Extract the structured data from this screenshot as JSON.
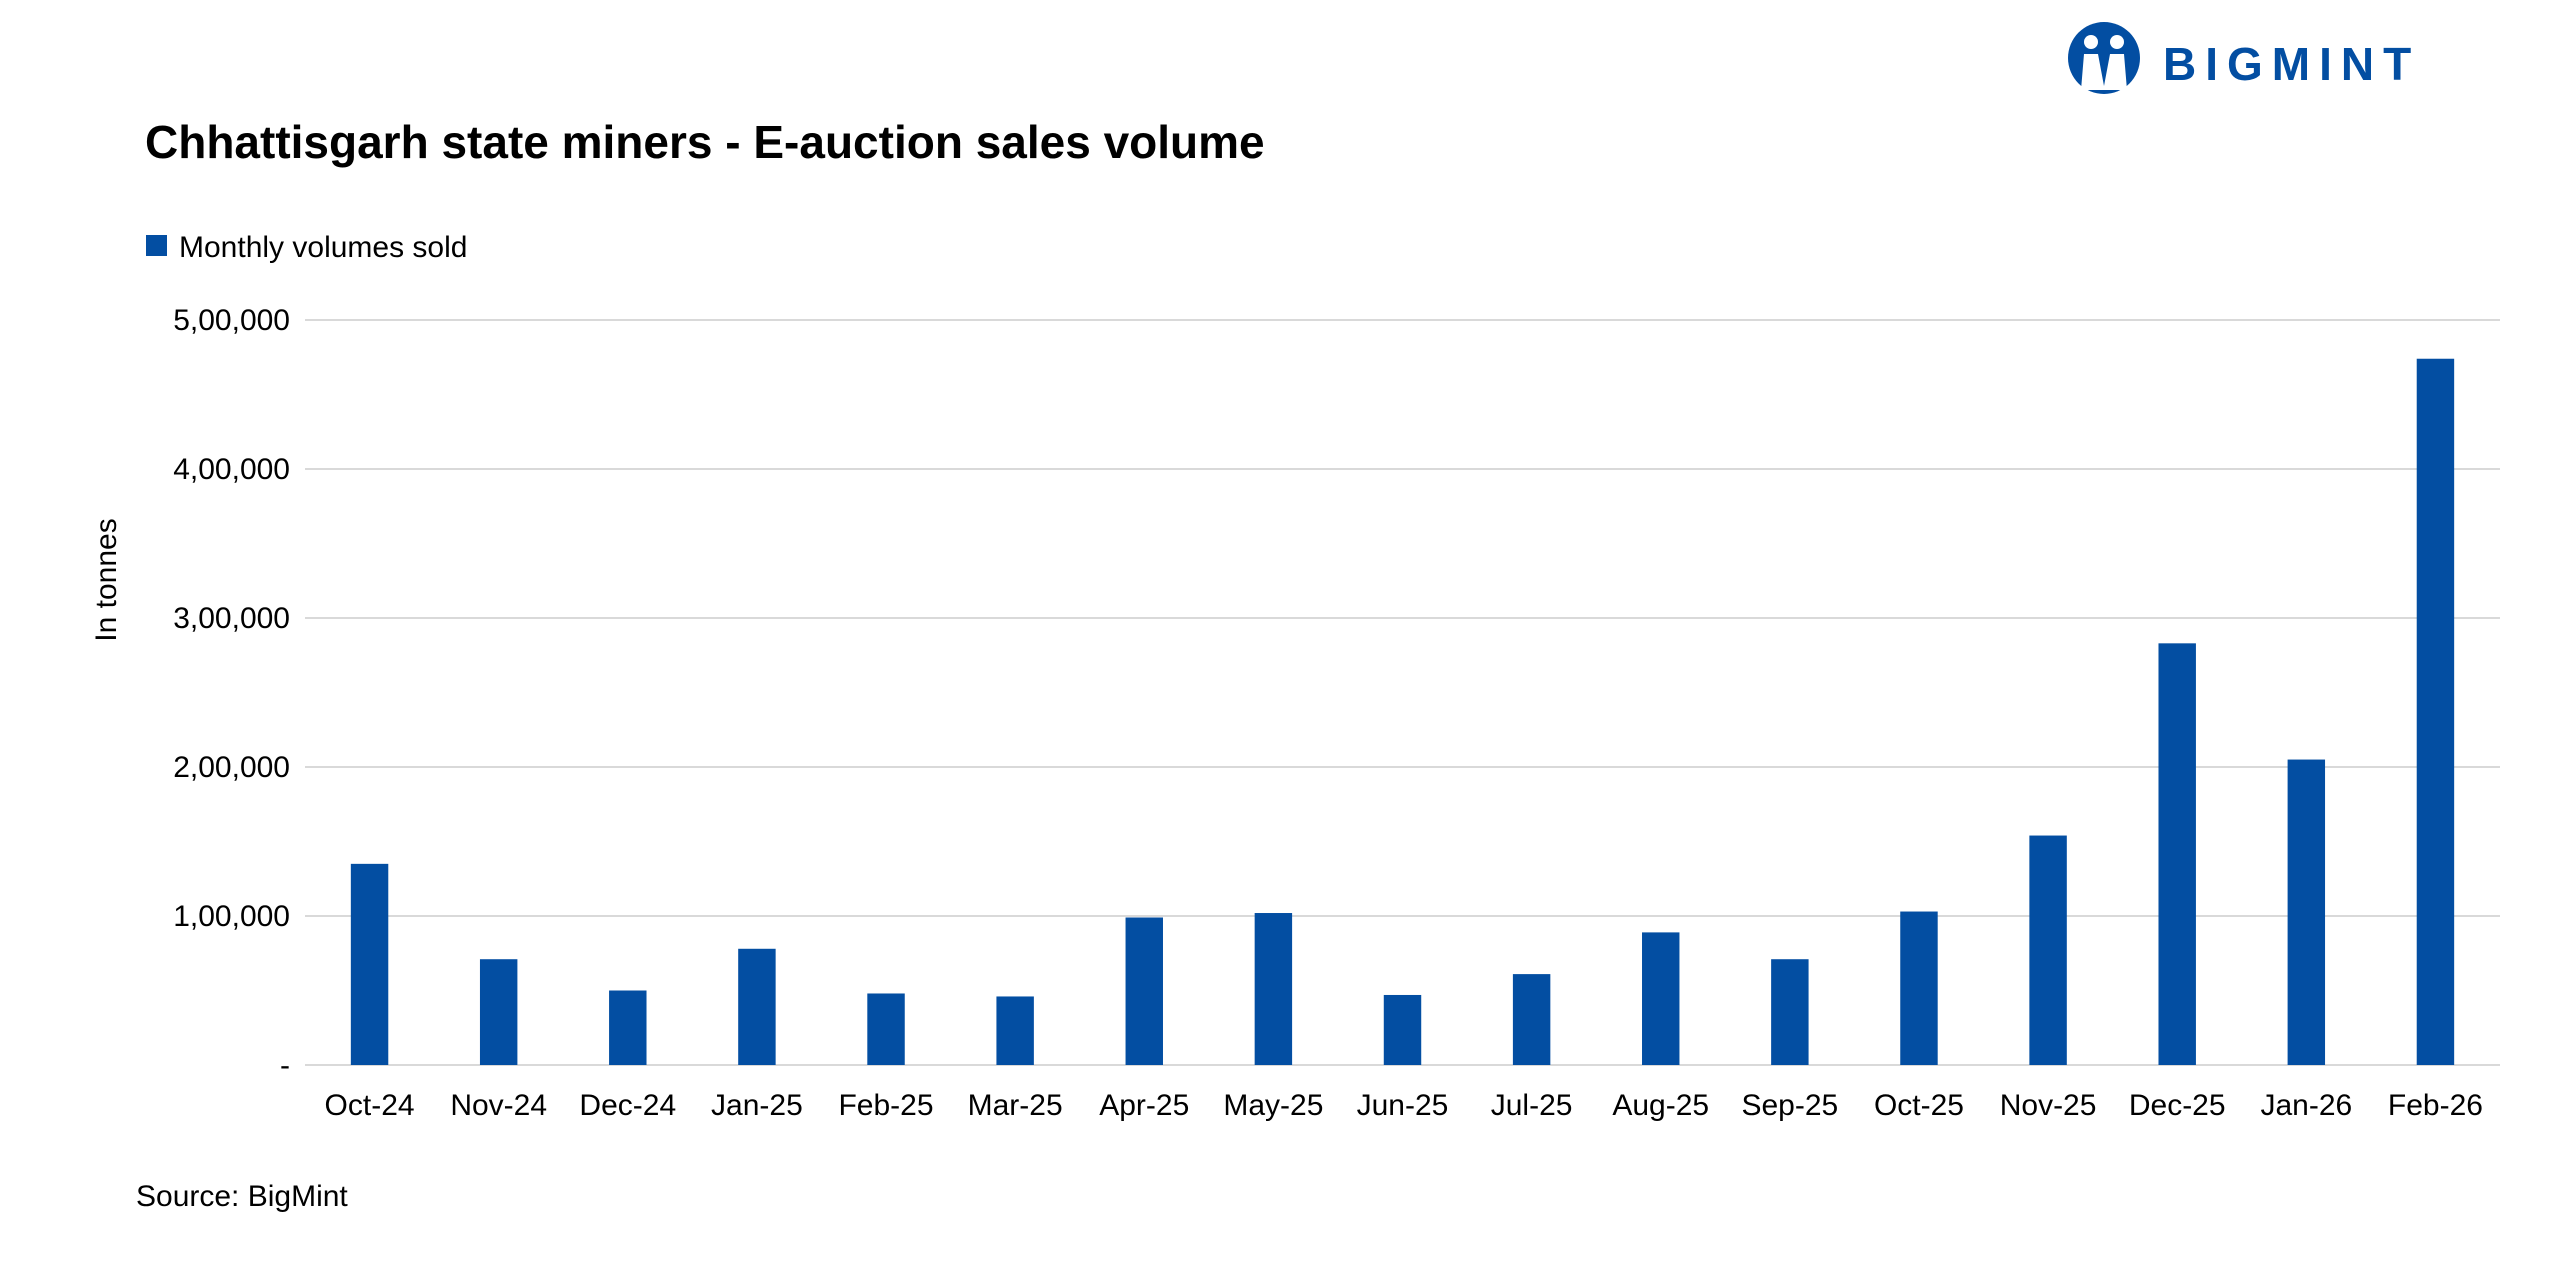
{
  "logo": {
    "text": "BIGMINT",
    "color": "#034ea2"
  },
  "chart_data": {
    "type": "bar",
    "title": "Chhattisgarh state miners - E-auction sales volume",
    "ylabel": "In tonnes",
    "xlabel": "",
    "source": "Source: BigMint",
    "ylim": [
      0,
      500000
    ],
    "yticks": [
      0,
      100000,
      200000,
      300000,
      400000,
      500000
    ],
    "ytick_labels": [
      "-",
      "1,00,000",
      "2,00,000",
      "3,00,000",
      "4,00,000",
      "5,00,000"
    ],
    "grid": true,
    "legend_position": "top-left",
    "categories": [
      "Oct-24",
      "Nov-24",
      "Dec-24",
      "Jan-25",
      "Feb-25",
      "Mar-25",
      "Apr-25",
      "May-25",
      "Jun-25",
      "Jul-25",
      "Aug-25",
      "Sep-25",
      "Oct-25",
      "Nov-25",
      "Dec-25",
      "Jan-26",
      "Feb-26"
    ],
    "series": [
      {
        "name": "Monthly volumes sold",
        "color": "#034ea2",
        "values": [
          135000,
          71000,
          50000,
          78000,
          48000,
          46000,
          99000,
          102000,
          47000,
          61000,
          89000,
          71000,
          103000,
          154000,
          283000,
          205000,
          474000
        ]
      }
    ]
  }
}
